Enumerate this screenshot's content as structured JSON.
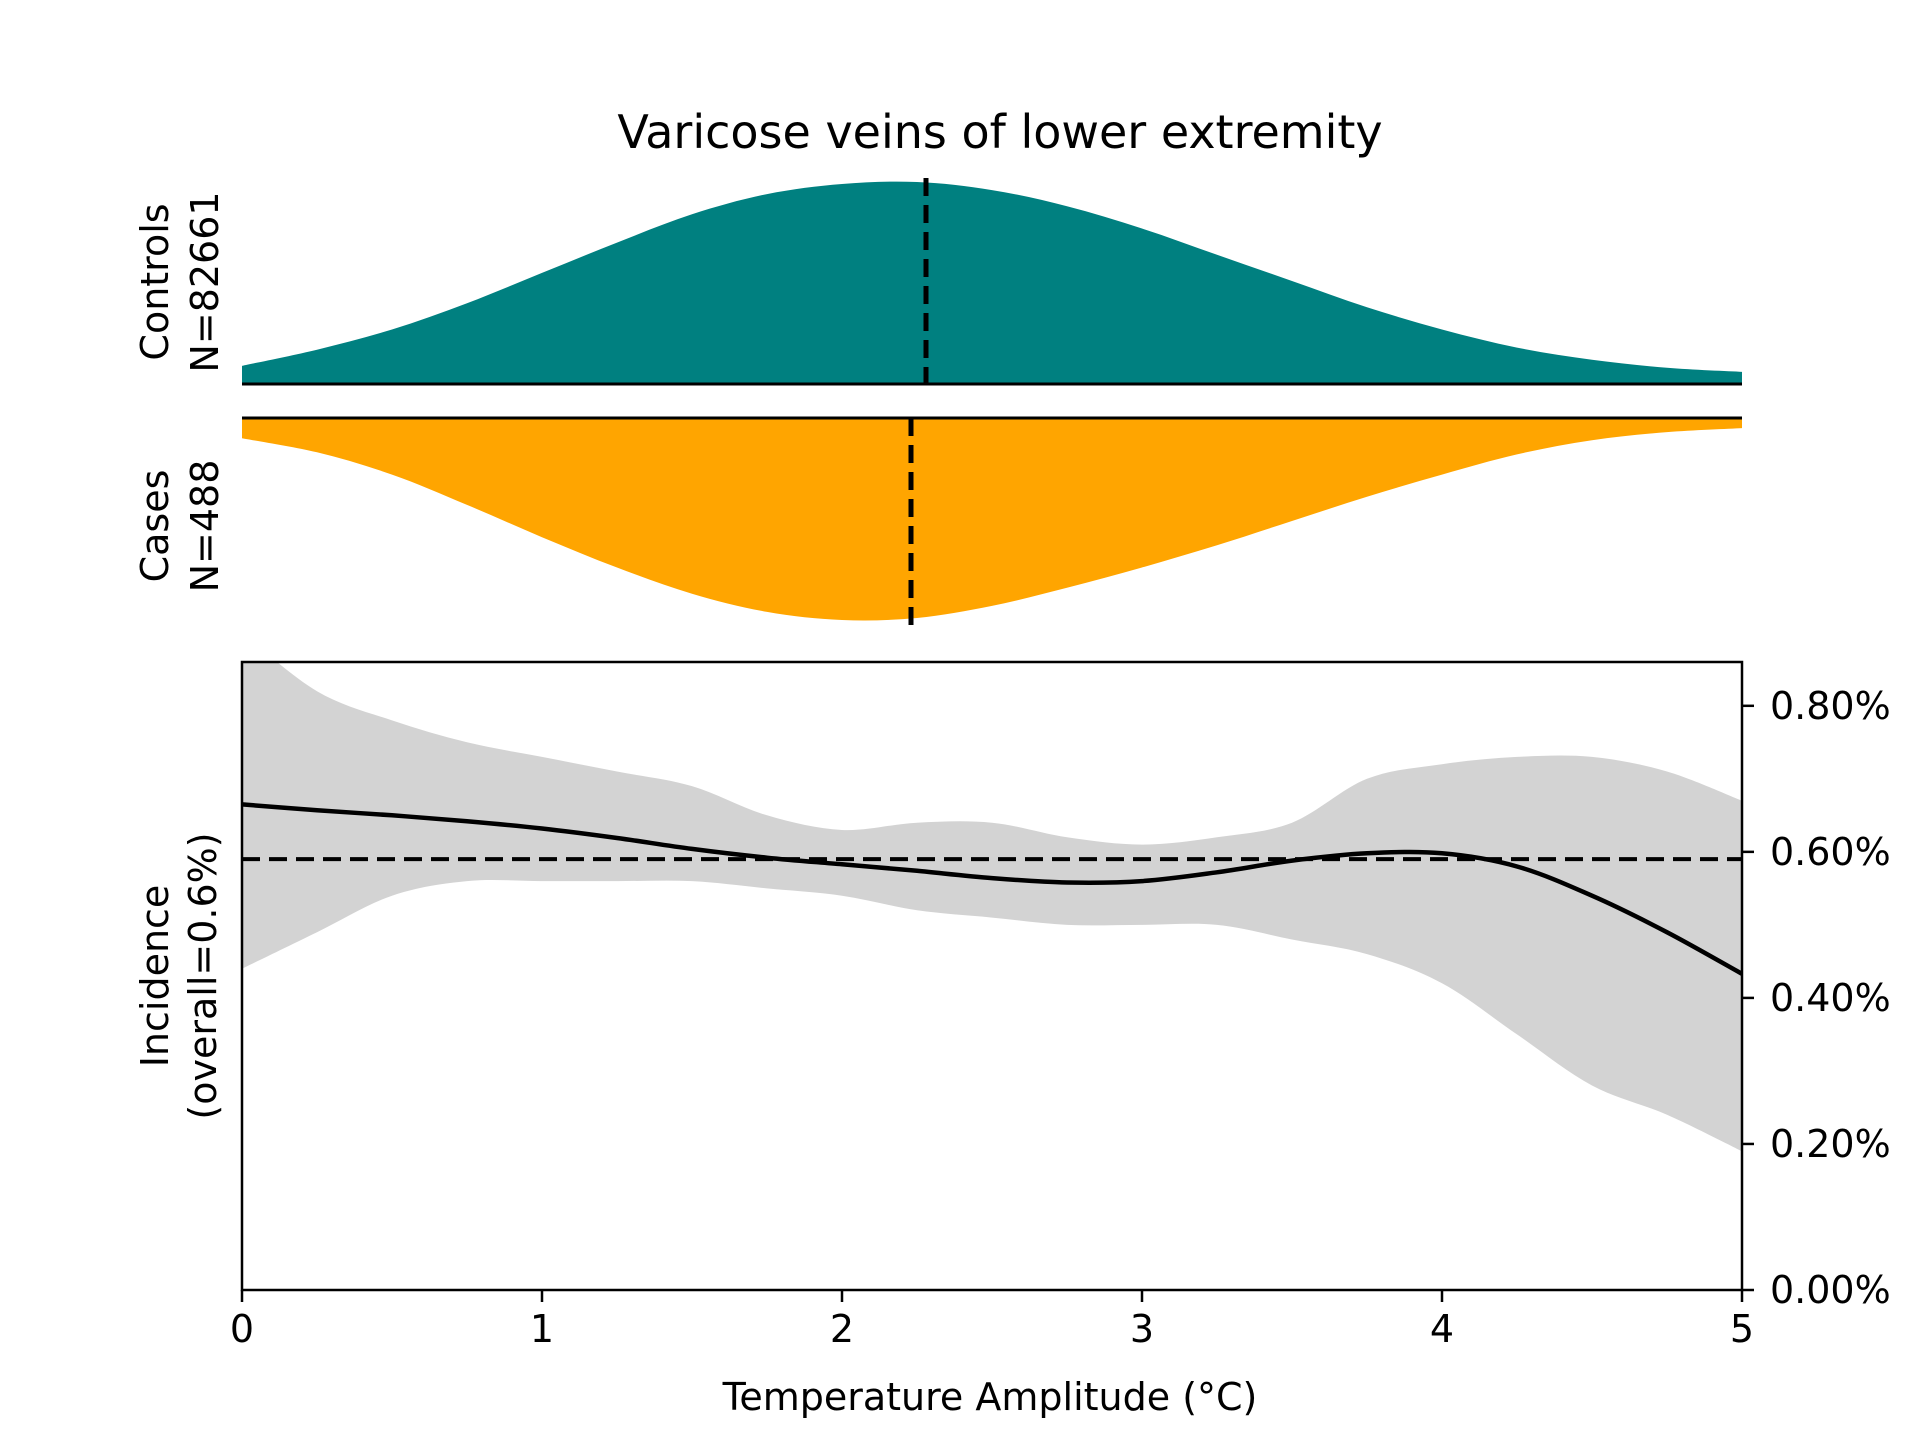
{
  "chart_data": {
    "type": "area",
    "title": "Varicose veins of lower extremity",
    "xlabel": "Temperature Amplitude (°C)",
    "xlim": [
      0,
      5
    ],
    "x_ticks": [
      {
        "value": 0,
        "label": "0"
      },
      {
        "value": 1,
        "label": "1"
      },
      {
        "value": 2,
        "label": "2"
      },
      {
        "value": 3,
        "label": "3"
      },
      {
        "value": 4,
        "label": "4"
      },
      {
        "value": 5,
        "label": "5"
      }
    ],
    "controls": {
      "label_line1": "Controls",
      "label_line2": "N=82661",
      "color": "#008080",
      "median": 2.28,
      "density_x": [
        0,
        0.25,
        0.5,
        0.75,
        1.0,
        1.25,
        1.5,
        1.75,
        2.0,
        2.25,
        2.5,
        2.75,
        3.0,
        3.25,
        3.5,
        3.75,
        4.0,
        4.25,
        4.5,
        4.75,
        5.0
      ],
      "density_y": [
        0.09,
        0.17,
        0.27,
        0.4,
        0.55,
        0.7,
        0.84,
        0.94,
        0.99,
        1.0,
        0.96,
        0.88,
        0.77,
        0.64,
        0.51,
        0.38,
        0.27,
        0.18,
        0.12,
        0.08,
        0.06
      ]
    },
    "cases": {
      "label_line1": "Cases",
      "label_line2": "N=488",
      "color": "#ffa500",
      "median": 2.23,
      "density_x": [
        0,
        0.25,
        0.5,
        0.75,
        1.0,
        1.25,
        1.5,
        1.75,
        2.0,
        2.25,
        2.5,
        2.75,
        3.0,
        3.25,
        3.5,
        3.75,
        4.0,
        4.25,
        4.5,
        4.75,
        5.0
      ],
      "density_y": [
        0.1,
        0.17,
        0.28,
        0.43,
        0.59,
        0.74,
        0.87,
        0.96,
        1.0,
        0.99,
        0.93,
        0.84,
        0.74,
        0.63,
        0.51,
        0.39,
        0.28,
        0.18,
        0.11,
        0.07,
        0.05
      ]
    },
    "incidence": {
      "ylabel_line1": "Incidence",
      "ylabel_line2": "(overall=0.6%)",
      "ylim": [
        0,
        0.86
      ],
      "y_ticks": [
        {
          "value": 0.0,
          "label": "0.00%"
        },
        {
          "value": 0.2,
          "label": "0.20%"
        },
        {
          "value": 0.4,
          "label": "0.40%"
        },
        {
          "value": 0.6,
          "label": "0.60%"
        },
        {
          "value": 0.8,
          "label": "0.80%"
        }
      ],
      "overall": 0.59,
      "x": [
        0,
        0.25,
        0.5,
        0.75,
        1.0,
        1.25,
        1.5,
        1.75,
        2.0,
        2.25,
        2.5,
        2.75,
        3.0,
        3.25,
        3.5,
        3.75,
        4.0,
        4.25,
        4.5,
        4.75,
        5.0
      ],
      "mean": [
        0.665,
        0.657,
        0.65,
        0.642,
        0.632,
        0.619,
        0.604,
        0.592,
        0.583,
        0.574,
        0.564,
        0.558,
        0.56,
        0.572,
        0.588,
        0.598,
        0.598,
        0.58,
        0.54,
        0.49,
        0.433
      ],
      "upper": [
        0.9,
        0.82,
        0.78,
        0.75,
        0.73,
        0.71,
        0.69,
        0.65,
        0.63,
        0.64,
        0.64,
        0.62,
        0.61,
        0.62,
        0.64,
        0.7,
        0.72,
        0.73,
        0.73,
        0.71,
        0.67
      ],
      "lower": [
        0.44,
        0.49,
        0.54,
        0.56,
        0.56,
        0.56,
        0.56,
        0.55,
        0.54,
        0.52,
        0.51,
        0.5,
        0.5,
        0.5,
        0.48,
        0.46,
        0.42,
        0.35,
        0.28,
        0.24,
        0.19
      ],
      "band_color": "#d3d3d3",
      "line_color": "#000000"
    }
  }
}
